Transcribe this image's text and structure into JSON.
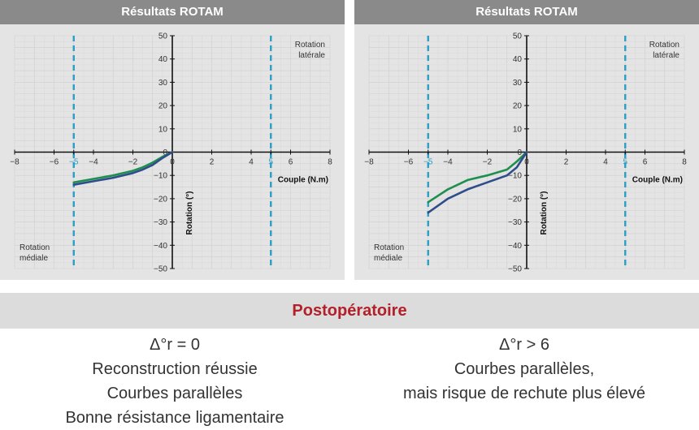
{
  "chart_data": [
    {
      "type": "line",
      "title": "Résultats ROTAM",
      "xlabel": "Couple (N.m)",
      "ylabel": "Rotation (°)",
      "xlim": [
        -8,
        8
      ],
      "ylim": [
        -50,
        50
      ],
      "x_ticks": [
        -8,
        -6,
        -5,
        -4,
        -2,
        0,
        2,
        4,
        5,
        6,
        8
      ],
      "y_ticks": [
        -50,
        -40,
        -30,
        -20,
        -10,
        0,
        10,
        20,
        30,
        40,
        50
      ],
      "highlight_ticks": [
        -5,
        5
      ],
      "reference_lines": [
        -5,
        5
      ],
      "annotations": {
        "lateral": [
          "Rotation",
          "latérale"
        ],
        "medial": [
          "Rotation",
          "médiale"
        ]
      },
      "grid": true,
      "series": [
        {
          "color": "#1f8f4f",
          "x": [
            -5,
            -4,
            -3,
            -2,
            -1.5,
            -1,
            -0.5,
            0
          ],
          "y": [
            -13,
            -11.5,
            -10,
            -8,
            -6.5,
            -4.5,
            -2,
            0
          ]
        },
        {
          "color": "#2e4d8a",
          "x": [
            -5,
            -4,
            -3,
            -2,
            -1.5,
            -1,
            -0.5,
            0
          ],
          "y": [
            -14,
            -12.5,
            -11,
            -9,
            -7.5,
            -5.5,
            -2.5,
            0
          ]
        }
      ]
    },
    {
      "type": "line",
      "title": "Résultats ROTAM",
      "xlabel": "Couple (N.m)",
      "ylabel": "Rotation (°)",
      "xlim": [
        -8,
        8
      ],
      "ylim": [
        -50,
        50
      ],
      "x_ticks": [
        -8,
        -6,
        -5,
        -4,
        -2,
        0,
        2,
        4,
        5,
        6,
        8
      ],
      "y_ticks": [
        -50,
        -40,
        -30,
        -20,
        -10,
        0,
        10,
        20,
        30,
        40,
        50
      ],
      "highlight_ticks": [
        -5,
        5
      ],
      "reference_lines": [
        -5,
        5
      ],
      "annotations": {
        "lateral": [
          "Rotation",
          "latérale"
        ],
        "medial": [
          "Rotation",
          "médiale"
        ]
      },
      "grid": true,
      "series": [
        {
          "color": "#1f8f4f",
          "x": [
            -5,
            -4,
            -3,
            -2,
            -1,
            -0.5,
            0
          ],
          "y": [
            -21.5,
            -16,
            -12,
            -10,
            -7.5,
            -4,
            0
          ]
        },
        {
          "color": "#2e4d8a",
          "x": [
            -5,
            -4,
            -3,
            -2,
            -1,
            -0.5,
            0
          ],
          "y": [
            -26,
            -20,
            -16,
            -13,
            -10,
            -6.5,
            0
          ]
        }
      ]
    }
  ],
  "banner": {
    "title": "Postopératoire"
  },
  "summary_left": [
    "Δ°r = 0",
    "Reconstruction réussie",
    "Courbes parallèles",
    "Bonne résistance ligamentaire"
  ],
  "summary_right": [
    "Δ°r > 6",
    "Courbes parallèles,",
    "mais risque de rechute plus élevé"
  ]
}
